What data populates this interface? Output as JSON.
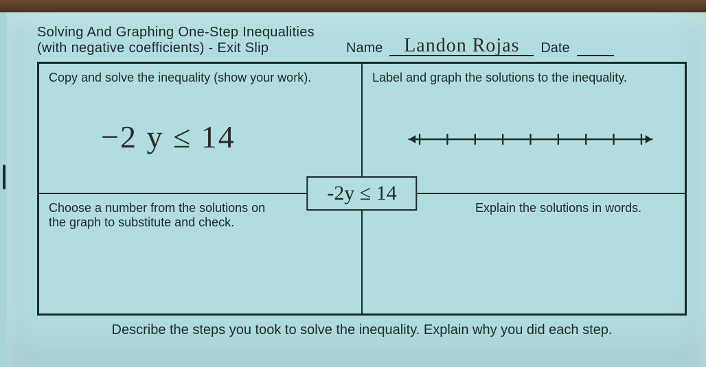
{
  "colors": {
    "paper": "#b2dde0",
    "ink": "#1b2a2b",
    "handwriting": "#2b2b2b",
    "wood_top": "#6b4a32",
    "wood_bottom": "#4a3220"
  },
  "header": {
    "title_line1": "Solving And Graphing One-Step Inequalities",
    "title_line2": "(with negative coefficients) - Exit Slip",
    "name_label": "Name",
    "name_value": "Landon Rojas",
    "date_label": "Date",
    "date_value": ""
  },
  "grid": {
    "top_left_label": "Copy and solve the inequality (show your work).",
    "top_left_handwritten": "−2 y ≤ 14",
    "top_right_label": "Label and graph the solutions to the inequality.",
    "bottom_left_label": "Choose a number from the solutions on the graph to substitute and check.",
    "bottom_right_label": "Explain the solutions in words.",
    "center_expression": "-2y ≤ 14"
  },
  "numberline": {
    "tick_count": 9,
    "stroke": "#1b2a2b",
    "stroke_width": 2.4,
    "tick_height": 14,
    "arrow_size": 10
  },
  "footer": {
    "text": "Describe the steps you took to solve the inequality.  Explain why you did each step."
  },
  "typography": {
    "body_fontsize": 20,
    "handwriting_fontsize": 46,
    "centerbox_fontsize": 30
  }
}
